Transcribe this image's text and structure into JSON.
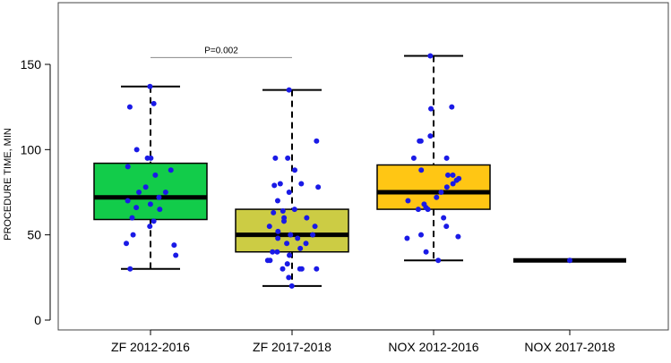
{
  "chart_data": {
    "type": "box",
    "title": "",
    "xlabel": "",
    "ylabel": "PROCEDURE TIME, MIN",
    "ylim": [
      -5,
      180
    ],
    "yticks": [
      0,
      50,
      100,
      150
    ],
    "grid": false,
    "categories": [
      "ZF 2012-2016",
      "ZF 2017-2018",
      "NOX 2012-2016",
      "NOX 2017-2018"
    ],
    "boxes": [
      {
        "category": "ZF 2012-2016",
        "color": "#12cc4a",
        "min": 30,
        "q1": 59,
        "median": 72,
        "q3": 92,
        "max": 137,
        "points": [
          137,
          127,
          125,
          100,
          95,
          95,
          90,
          88,
          85,
          78,
          75,
          75,
          72,
          70,
          68,
          66,
          65,
          60,
          58,
          55,
          50,
          45,
          44,
          38,
          30
        ]
      },
      {
        "category": "ZF 2017-2018",
        "color": "#cccc44",
        "min": 20,
        "q1": 40,
        "median": 50,
        "q3": 65,
        "max": 135,
        "points": [
          135,
          105,
          95,
          95,
          88,
          80,
          80,
          79,
          78,
          75,
          70,
          65,
          64,
          63,
          60,
          60,
          58,
          55,
          55,
          52,
          50,
          50,
          48,
          48,
          45,
          45,
          42,
          40,
          40,
          38,
          35,
          35,
          33,
          30,
          30,
          30,
          30,
          25,
          20
        ]
      },
      {
        "category": "NOX 2012-2016",
        "color": "#ffc614",
        "min": 35,
        "q1": 65,
        "median": 75,
        "q3": 91,
        "max": 155,
        "points": [
          155,
          125,
          124,
          108,
          105,
          105,
          95,
          95,
          88,
          85,
          85,
          83,
          82,
          80,
          78,
          75,
          72,
          70,
          68,
          66,
          65,
          65,
          60,
          55,
          50,
          49,
          48,
          40,
          35
        ]
      },
      {
        "category": "NOX 2017-2018",
        "color": "#000000",
        "min": 35,
        "q1": 35,
        "median": 35,
        "q3": 35,
        "max": 35,
        "points": [
          35
        ]
      }
    ],
    "annotations": [
      {
        "text": "P=0.002",
        "from": "ZF 2012-2016",
        "to": "ZF 2017-2018",
        "y": 154
      }
    ]
  }
}
